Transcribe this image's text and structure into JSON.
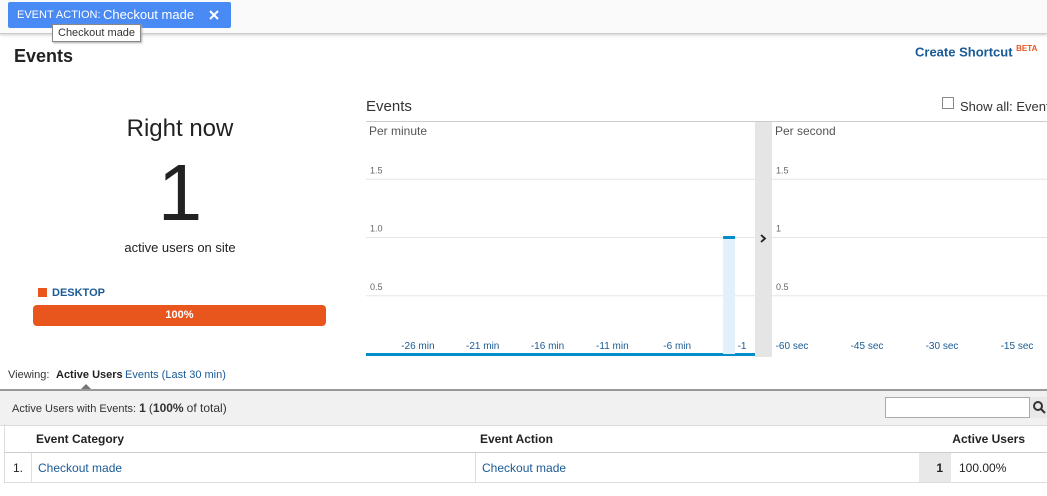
{
  "filter": {
    "label": "EVENT ACTION:",
    "value": "Checkout made",
    "tooltip": "Checkout made"
  },
  "header": {
    "title": "Events",
    "shortcut": "Create Shortcut",
    "badge": "BETA"
  },
  "right_now": {
    "title": "Right now",
    "count": 1,
    "caption": "active users on site",
    "device": {
      "name": "DESKTOP",
      "value": 100,
      "value_label": "100%",
      "color": "#e8561e"
    }
  },
  "events_chart": {
    "title": "Events",
    "show_all": "Show all: Event",
    "panels": [
      {
        "type": "bar",
        "title": "Per minute",
        "x": [
          -2
        ],
        "values": [
          1
        ],
        "color": "#058dc7",
        "xlim": [
          -30,
          0
        ],
        "ylim": [
          0,
          2
        ],
        "yticks": [
          0.5,
          {
            "value": 1,
            "label": "1.0"
          },
          1.5
        ],
        "grid": true,
        "xticks": [
          {
            "value": -26,
            "label": "-26 min"
          },
          {
            "value": -21,
            "label": "-21 min"
          },
          {
            "value": -16,
            "label": "-16 min"
          },
          {
            "value": -11,
            "label": "-11 min"
          },
          {
            "value": -6,
            "label": "-6 min"
          },
          {
            "value": -1,
            "label": "-1"
          }
        ]
      },
      {
        "type": "bar",
        "title": "Per second",
        "x": [],
        "values": [],
        "color": "#058dc7",
        "xlim": [
          -64,
          -9
        ],
        "ylim": [
          0,
          2
        ],
        "yticks": [
          0.5,
          1,
          1.5
        ],
        "grid": true,
        "xticks": [
          {
            "value": -60,
            "label": "-60 sec"
          },
          {
            "value": -45,
            "label": "-45 sec"
          },
          {
            "value": -30,
            "label": "-30 sec"
          },
          {
            "value": -15,
            "label": "-15 sec"
          }
        ]
      }
    ]
  },
  "viewing": {
    "label": "Viewing:",
    "tabs": [
      "Active Users",
      "Events (Last 30 min)"
    ]
  },
  "table": {
    "summary": {
      "label": "Active Users with Events:",
      "count": "1",
      "open": "(",
      "percent": "100%",
      "rest": "of total)"
    },
    "columns": [
      "Event Category",
      "Event Action",
      "Active Users"
    ],
    "rows": [
      [
        "1.",
        "Checkout made",
        "Checkout made",
        "1",
        "100.00%"
      ]
    ]
  }
}
